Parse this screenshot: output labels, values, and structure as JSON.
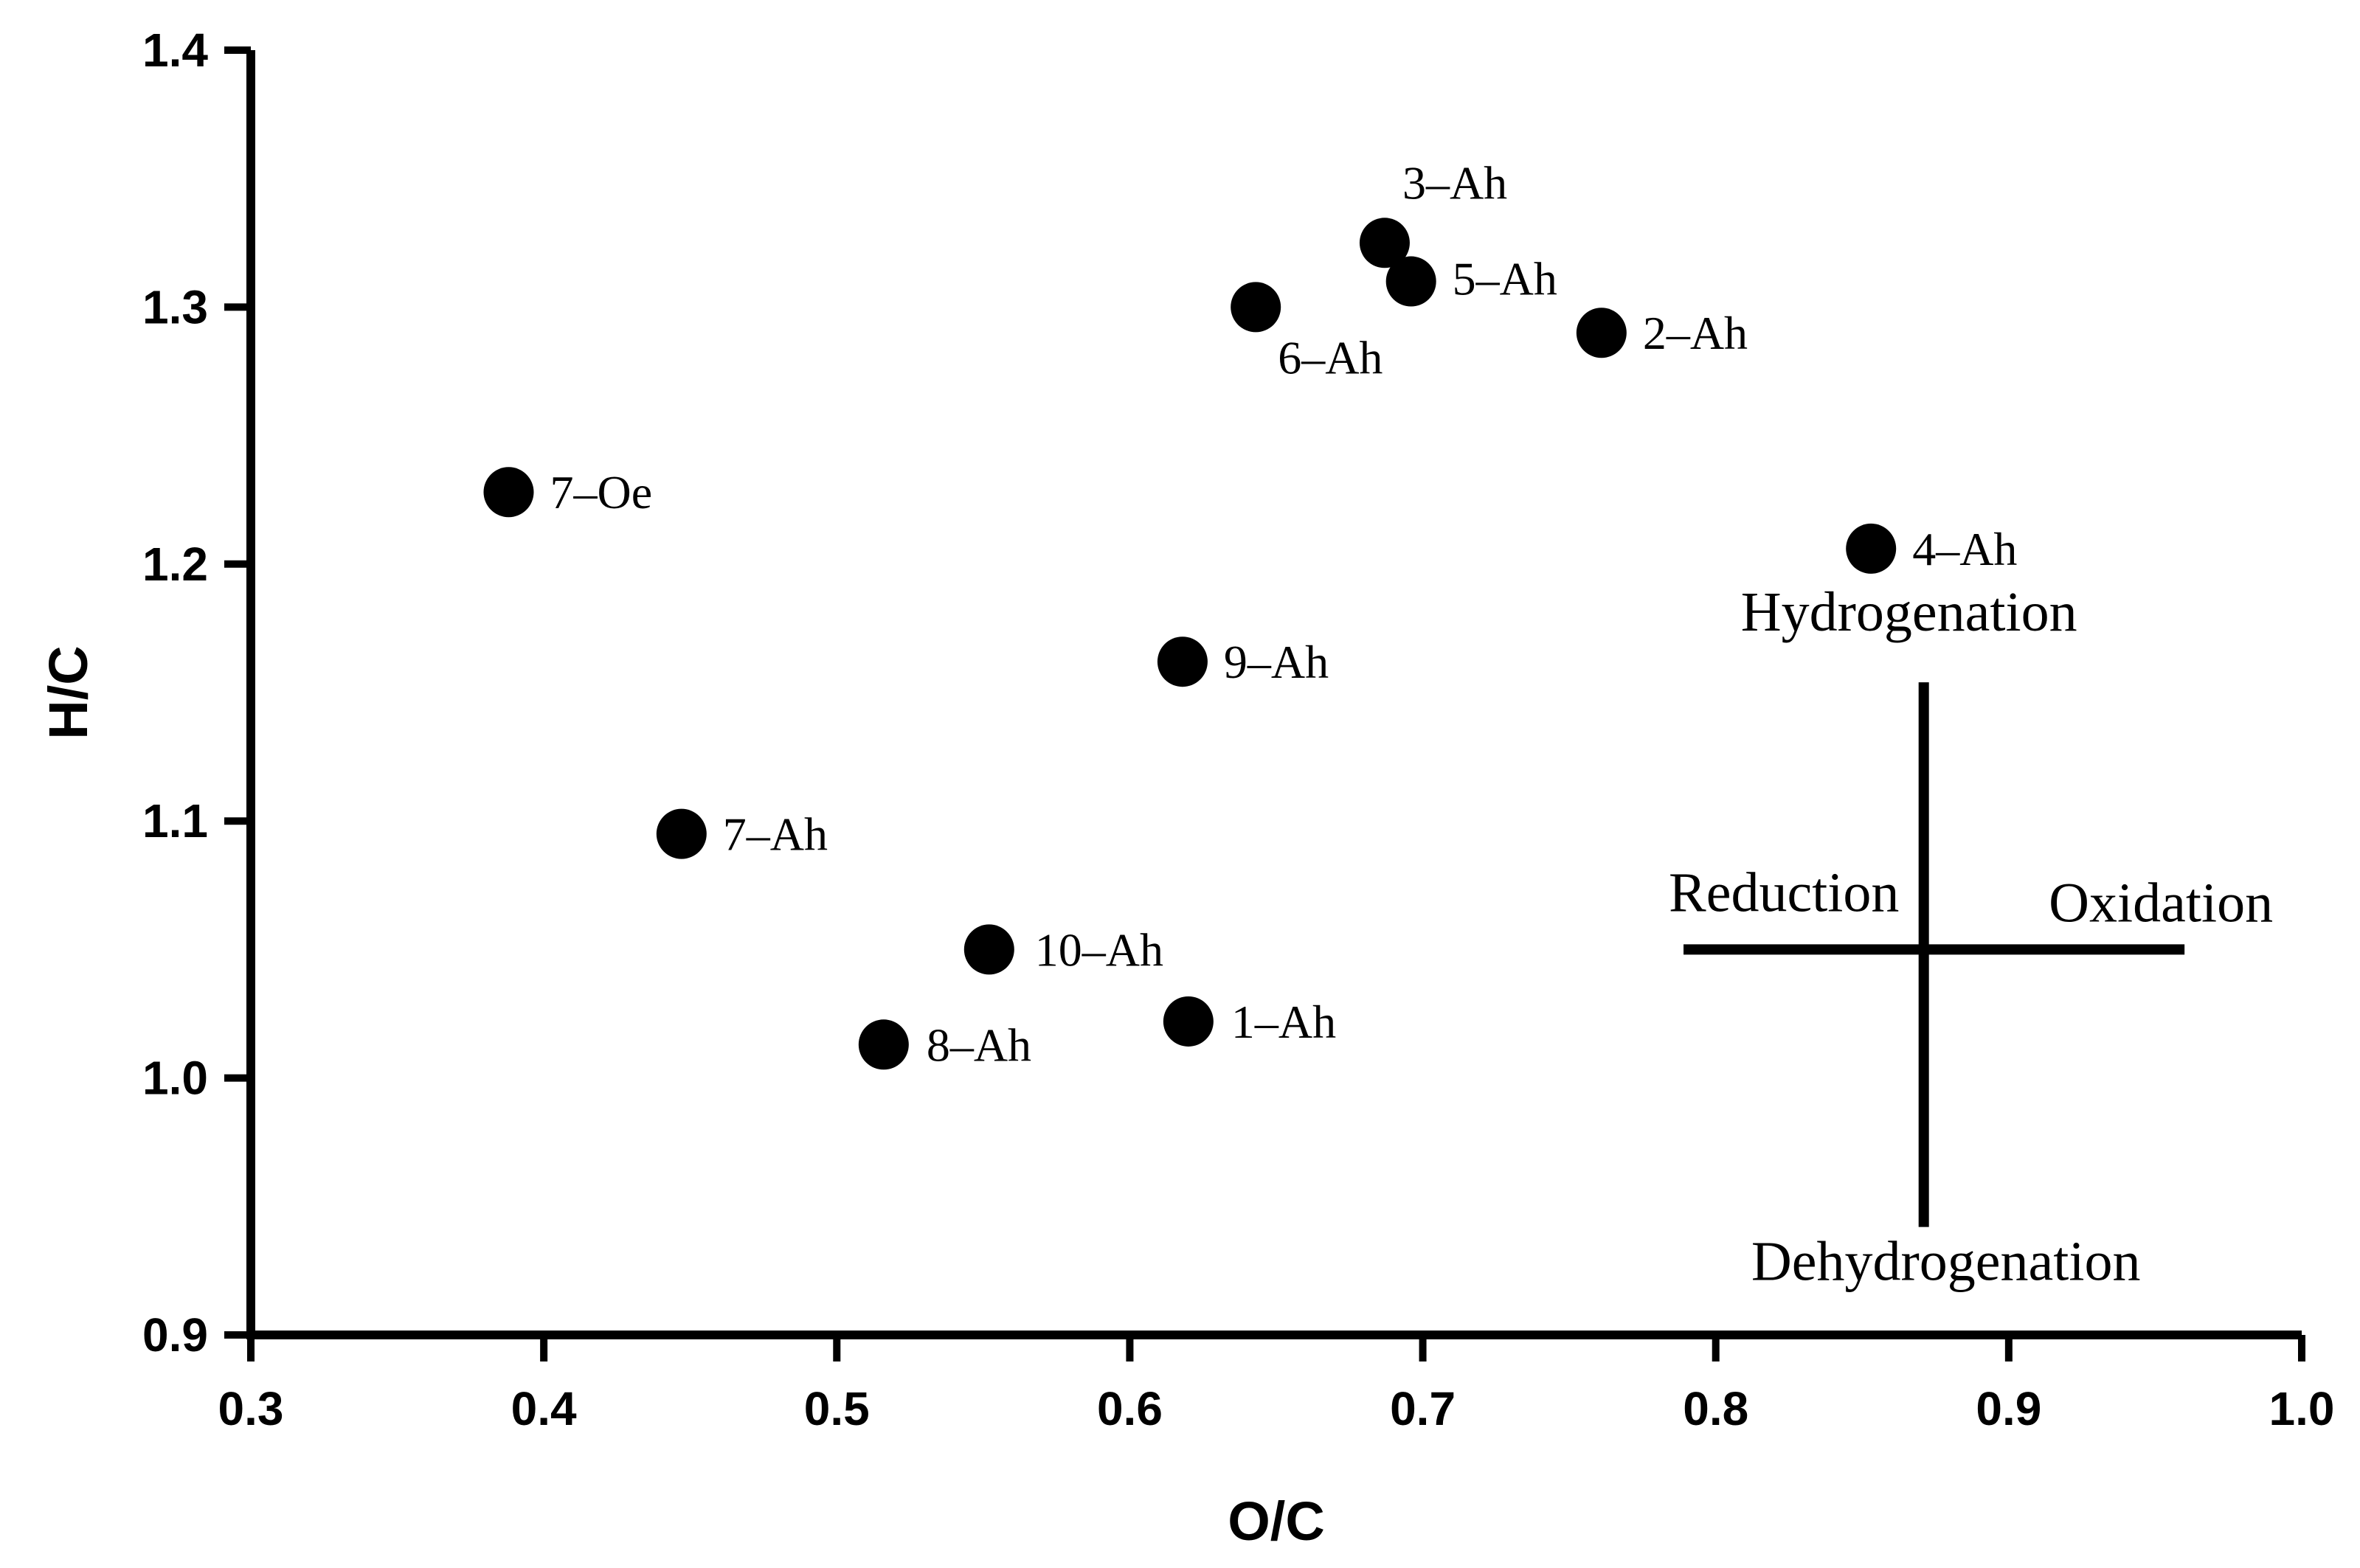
{
  "chart_data": {
    "type": "scatter",
    "title": "",
    "xlabel": "O/C",
    "ylabel": "H/C",
    "xlim": [
      0.3,
      1.0
    ],
    "ylim": [
      0.9,
      1.4
    ],
    "xticks": [
      "0.3",
      "0.4",
      "0.5",
      "0.6",
      "0.7",
      "0.8",
      "0.9",
      "1.0"
    ],
    "yticks": [
      "0.9",
      "1.0",
      "1.1",
      "1.2",
      "1.3",
      "1.4"
    ],
    "grid": false,
    "marker_color": "#000000",
    "points": [
      {
        "label": "3–Ah",
        "x": 0.687,
        "y": 1.325
      },
      {
        "label": "5–Ah",
        "x": 0.696,
        "y": 1.31
      },
      {
        "label": "6–Ah",
        "x": 0.643,
        "y": 1.3
      },
      {
        "label": "2–Ah",
        "x": 0.761,
        "y": 1.29
      },
      {
        "label": "7–Oe",
        "x": 0.388,
        "y": 1.228
      },
      {
        "label": "4–Ah",
        "x": 0.853,
        "y": 1.206
      },
      {
        "label": "9–Ah",
        "x": 0.618,
        "y": 1.162
      },
      {
        "label": "7–Ah",
        "x": 0.447,
        "y": 1.095
      },
      {
        "label": "10–Ah",
        "x": 0.552,
        "y": 1.05
      },
      {
        "label": "1–Ah",
        "x": 0.62,
        "y": 1.022
      },
      {
        "label": "8–Ah",
        "x": 0.516,
        "y": 1.013
      }
    ],
    "annotation": {
      "center": {
        "x": 0.871,
        "y": 1.05
      },
      "x_range": [
        0.789,
        0.96
      ],
      "y_range": [
        0.942,
        1.154
      ],
      "labels": {
        "top": "Hydrogenation",
        "bottom": "Dehydrogenation",
        "left": "Reduction",
        "right": "Oxidation"
      }
    }
  }
}
